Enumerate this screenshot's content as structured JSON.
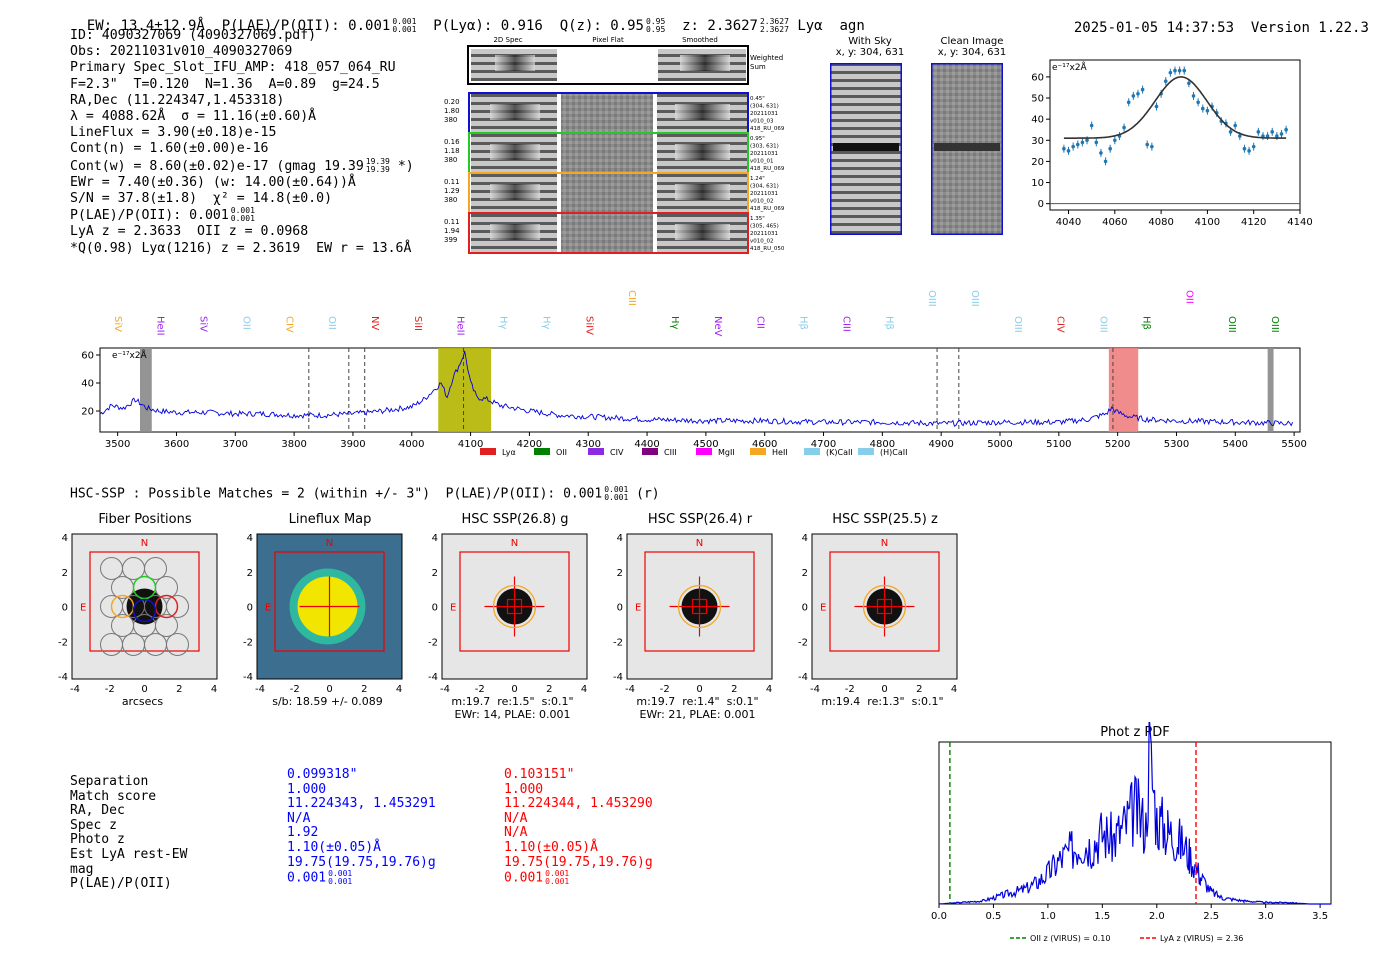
{
  "header": {
    "ew": "EW: 13.4±12.9Å",
    "plae_label": "P(LAE)/P(OII): 0.001",
    "plae_hi": "0.001",
    "plae_lo": "0.001",
    "plya": "P(Lyα): 0.916",
    "qz_label": "Q(z): 0.95",
    "qz_hi": "0.95",
    "qz_lo": "0.95",
    "z_label": "z: 2.3627",
    "z_hi": "2.3627",
    "z_lo": "2.3627",
    "line": "Lyα",
    "agn": "agn",
    "timestamp": "2025-01-05 14:37:53",
    "version": "Version 1.22.3"
  },
  "info": {
    "id": "ID: 4090327069 (4090327069.pdf)",
    "obs": "Obs: 20211031v010_4090327069",
    "primary": "Primary Spec_Slot_IFU_AMP: 418_057_064_RU",
    "fit": "F=2.3\"  T=0.120  N=1.36  A=0.89  g=24.5",
    "radec": "RA,Dec (11.224347,1.453318)",
    "lambda": "λ = 4088.62Å  σ = 11.16(±0.60)Å",
    "lineflux": "LineFlux = 3.90(±0.18)e-15",
    "contn": "Cont(n) = 1.60(±0.00)e-16",
    "contw": "Cont(w) = 8.60(±0.02)e-17 (gmag 19.39",
    "contw_hi": "19.39",
    "contw_lo": "19.39",
    "contw_end": "*)",
    "ewr": "EWr = 7.40(±0.36) (w: 14.00(±0.64))Å",
    "sn": "S/N = 37.8(±1.8)  χ² = 14.8(±0.0)",
    "plae": "P(LAE)/P(OII): 0.001",
    "plae_hi": "0.001",
    "plae_lo": "0.001",
    "lyaz": "LyA z = 2.3633  OII z = 0.0968",
    "q": "*Q(0.98) Lyα(1216) z = 2.3619  EW r = 13.6Å"
  },
  "cutouts": {
    "col_headers": [
      "2D Spec",
      "Pixel Flat",
      "Smoothed"
    ],
    "weighted": "Weighted Sum",
    "rows": [
      {
        "a": "0.20",
        "b": "1.80",
        "c": "380",
        "note1": "0.45\"",
        "note2": "(304, 631)",
        "note3": "20211031",
        "note4": "v010_03",
        "note5": "418_RU_069",
        "color": "#1010d0"
      },
      {
        "a": "0.16",
        "b": "1.18",
        "c": "380",
        "note1": "0.95\"",
        "note2": "(303, 631)",
        "note3": "20211031",
        "note4": "v010_01",
        "note5": "418_RU_069",
        "color": "#22cc22"
      },
      {
        "a": "0.11",
        "b": "1.29",
        "c": "380",
        "note1": "1.24\"",
        "note2": "(304, 631)",
        "note3": "20211031",
        "note4": "v010_02",
        "note5": "418_RU_069",
        "color": "#f5a623"
      },
      {
        "a": "0.11",
        "b": "1.94",
        "c": "399",
        "note1": "1.35\"",
        "note2": "(305, 465)",
        "note3": "20211031",
        "note4": "v010_02",
        "note5": "418_RU_050",
        "color": "#e02020"
      }
    ]
  },
  "sky": {
    "with_sky": "With Sky",
    "with_sky_xy": "x, y: 304, 631",
    "clean": "Clean Image",
    "clean_xy": "x, y: 304, 631"
  },
  "fitplot": {
    "ylabel": "e⁻¹⁷x2Å",
    "yticks": [
      "0",
      "10",
      "20",
      "30",
      "40",
      "50",
      "60"
    ],
    "xticks": [
      "4040",
      "4060",
      "4080",
      "4100",
      "4120",
      "4140"
    ]
  },
  "spectrum": {
    "ylabel": "e⁻¹⁷x2Å",
    "yticks": [
      "20",
      "40",
      "60"
    ],
    "xticks": [
      "3500",
      "3600",
      "3700",
      "3800",
      "3900",
      "4000",
      "4100",
      "4200",
      "4300",
      "4400",
      "4500",
      "4600",
      "4700",
      "4800",
      "4900",
      "5000",
      "5100",
      "5200",
      "5300",
      "5400",
      "5500"
    ],
    "lines": [
      {
        "label": "SiV",
        "color": "#f5a623"
      },
      {
        "label": "HeII",
        "color": "#a020f0"
      },
      {
        "label": "SiV",
        "color": "#a020f0"
      },
      {
        "label": "OII",
        "color": "#87ceeb"
      },
      {
        "label": "CIV",
        "color": "#f5a623"
      },
      {
        "label": "OII",
        "color": "#87ceeb"
      },
      {
        "label": "NV",
        "color": "#e02020"
      },
      {
        "label": "SiII",
        "color": "#e02020"
      },
      {
        "label": "HeII",
        "color": "#a020f0"
      },
      {
        "label": "Hγ",
        "color": "#87ceeb"
      },
      {
        "label": "Hγ",
        "color": "#87ceeb"
      },
      {
        "label": "SiIV",
        "color": "#e02020"
      },
      {
        "label": "CIII",
        "color": "#f5a623"
      },
      {
        "label": "Hγ",
        "color": "#008000"
      },
      {
        "label": "NeV",
        "color": "#a020f0"
      },
      {
        "label": "CII",
        "color": "#a020f0"
      },
      {
        "label": "Hβ",
        "color": "#87ceeb"
      },
      {
        "label": "CIII",
        "color": "#a020f0"
      },
      {
        "label": "Hβ",
        "color": "#87ceeb"
      },
      {
        "label": "OIII",
        "color": "#87ceeb"
      },
      {
        "label": "OIII",
        "color": "#87ceeb"
      },
      {
        "label": "OIII",
        "color": "#87ceeb"
      },
      {
        "label": "CIV",
        "color": "#e02020"
      },
      {
        "label": "OIII",
        "color": "#87ceeb"
      },
      {
        "label": "Hβ",
        "color": "#008000"
      },
      {
        "label": "OII",
        "color": "#ff00ff"
      },
      {
        "label": "OIII",
        "color": "#008000"
      },
      {
        "label": "OIII",
        "color": "#008000"
      }
    ],
    "legend": [
      {
        "label": "Lyα",
        "color": "#e02020"
      },
      {
        "label": "OII",
        "color": "#008000"
      },
      {
        "label": "CIV",
        "color": "#8a2be2"
      },
      {
        "label": "CIII",
        "color": "#800080"
      },
      {
        "label": "MgII",
        "color": "#ff00ff"
      },
      {
        "label": "HeII",
        "color": "#f5a623"
      },
      {
        "label": "(K)CaII",
        "color": "#87ceeb"
      },
      {
        "label": "(H)CaII",
        "color": "#87ceeb"
      }
    ]
  },
  "hsc": {
    "title": "HSC-SSP : Possible Matches = 2 (within +/- 3\")  P(LAE)/P(OII): 0.001",
    "frac_hi": "0.001",
    "frac_lo": "0.001",
    "suffix": "(r)",
    "n_label": "N",
    "e_label": "E",
    "axis_ticks": [
      "-4",
      "-2",
      "0",
      "2",
      "4"
    ],
    "panels": [
      {
        "title": "Fiber Positions",
        "cap1": "arcsecs",
        "cap2": ""
      },
      {
        "title": "Lineflux Map",
        "cap1": "s/b: 18.59 +/- 0.089",
        "cap2": ""
      },
      {
        "title": "HSC SSP(26.8) g",
        "cap1": "m:19.7  re:1.5\"  s:0.1\"",
        "cap2": "EWr: 14, PLAE: 0.001"
      },
      {
        "title": "HSC SSP(26.4) r",
        "cap1": "m:19.7  re:1.4\"  s:0.1\"",
        "cap2": "EWr: 21, PLAE: 0.001"
      },
      {
        "title": "HSC SSP(25.5) z",
        "cap1": "m:19.4  re:1.3\"  s:0.1\"",
        "cap2": ""
      }
    ]
  },
  "matches": {
    "labels": [
      "Separation",
      "Match score",
      "RA, Dec",
      "Spec z",
      "Photo z",
      "Est LyA rest-EW",
      "mag",
      "P(LAE)/P(OII)"
    ],
    "blue": [
      "0.099318\"",
      "1.000",
      "11.224343, 1.453291",
      "N/A",
      "1.92",
      "1.10(±0.05)Å",
      "19.75(19.75,19.76)g",
      "0.001"
    ],
    "red": [
      "0.103151\"",
      "1.000",
      "11.224344, 1.453290",
      "N/A",
      "N/A",
      "1.10(±0.05)Å",
      "19.75(19.75,19.76)g",
      "0.001"
    ],
    "frac_hi": "0.001",
    "frac_lo": "0.001",
    "blue_color": "#0000ff",
    "red_color": "#ff0000"
  },
  "chart_data": [
    {
      "type": "scatter",
      "title": "",
      "xlabel": "",
      "ylabel": "e⁻¹⁷x2Å",
      "xlim": [
        4032,
        4140
      ],
      "ylim": [
        -3,
        68
      ],
      "x": [
        4038,
        4040,
        4042,
        4044,
        4046,
        4048,
        4050,
        4052,
        4054,
        4056,
        4058,
        4060,
        4062,
        4064,
        4066,
        4068,
        4070,
        4072,
        4074,
        4076,
        4078,
        4080,
        4082,
        4084,
        4086,
        4088,
        4090,
        4092,
        4094,
        4096,
        4098,
        4100,
        4102,
        4104,
        4106,
        4108,
        4110,
        4112,
        4114,
        4116,
        4118,
        4120,
        4122,
        4124,
        4126,
        4128,
        4130,
        4132,
        4134
      ],
      "y": [
        26,
        25,
        27,
        28,
        29,
        30,
        37,
        29,
        24,
        20,
        26,
        30,
        32,
        36,
        48,
        51,
        52,
        54,
        28,
        27,
        46,
        52,
        58,
        62,
        63,
        63,
        63,
        57,
        51,
        48,
        45,
        44,
        46,
        43,
        39,
        38,
        34,
        37,
        32,
        26,
        25,
        27,
        34,
        32,
        32,
        34,
        32,
        33,
        35
      ],
      "model": {
        "baseline": 31,
        "amplitude": 29,
        "center": 4088.6,
        "sigma": 11.2
      }
    },
    {
      "type": "line",
      "title": "",
      "xlabel": "",
      "ylabel": "e⁻¹⁷x2Å",
      "xlim": [
        3470,
        5510
      ],
      "ylim": [
        5,
        65
      ],
      "x": [
        3470,
        3490,
        3510,
        3530,
        3550,
        3570,
        3600,
        3650,
        3700,
        3750,
        3800,
        3850,
        3900,
        3950,
        4000,
        4020,
        4040,
        4050,
        4060,
        4070,
        4080,
        4090,
        4100,
        4110,
        4130,
        4150,
        4200,
        4250,
        4300,
        4400,
        4500,
        4600,
        4700,
        4800,
        4900,
        5000,
        5100,
        5150,
        5180,
        5190,
        5200,
        5220,
        5250,
        5300,
        5400,
        5500
      ],
      "y": [
        18,
        24,
        22,
        28,
        22,
        20,
        19,
        19,
        18,
        18,
        17,
        17,
        18,
        20,
        23,
        28,
        36,
        40,
        30,
        44,
        52,
        62,
        40,
        30,
        28,
        24,
        20,
        17,
        16,
        14,
        13,
        13,
        12,
        12,
        11,
        12,
        12,
        14,
        18,
        22,
        19,
        16,
        14,
        13,
        12,
        11
      ],
      "highlight_regions": [
        [
          4045,
          4135
        ],
        [
          5185,
          5235
        ],
        [
          3538,
          3558
        ],
        [
          5455,
          5465
        ]
      ],
      "marker_lines": [
        3825,
        3893,
        3920,
        4088,
        4893,
        4930,
        5192
      ]
    },
    {
      "type": "line",
      "title": "Phot z PDF",
      "xlabel": "",
      "ylabel": "",
      "xlim": [
        0.0,
        3.6
      ],
      "x": [
        0,
        0.2,
        0.4,
        0.5,
        0.6,
        0.7,
        0.8,
        0.9,
        1.0,
        1.1,
        1.2,
        1.3,
        1.4,
        1.5,
        1.6,
        1.7,
        1.8,
        1.9,
        1.93,
        2.0,
        2.1,
        2.2,
        2.3,
        2.4,
        2.5,
        2.6,
        2.8,
        3.0,
        3.2,
        3.4,
        3.6
      ],
      "y": [
        0.0,
        0.01,
        0.02,
        0.04,
        0.06,
        0.08,
        0.1,
        0.14,
        0.2,
        0.28,
        0.34,
        0.4,
        0.38,
        0.46,
        0.42,
        0.5,
        0.62,
        0.5,
        1.0,
        0.55,
        0.48,
        0.42,
        0.32,
        0.18,
        0.08,
        0.04,
        0.02,
        0.01,
        0.01,
        0.0,
        0.0
      ],
      "xticks": [
        "0.0",
        "0.5",
        "1.0",
        "1.5",
        "2.0",
        "2.5",
        "3.0",
        "3.5"
      ],
      "vlines": [
        {
          "x": 0.1,
          "label": "OII z (VIRUS) = 0.10",
          "color": "#008000"
        },
        {
          "x": 2.36,
          "label": "LyA z (VIRUS) = 2.36",
          "color": "#ff0000"
        }
      ]
    }
  ]
}
